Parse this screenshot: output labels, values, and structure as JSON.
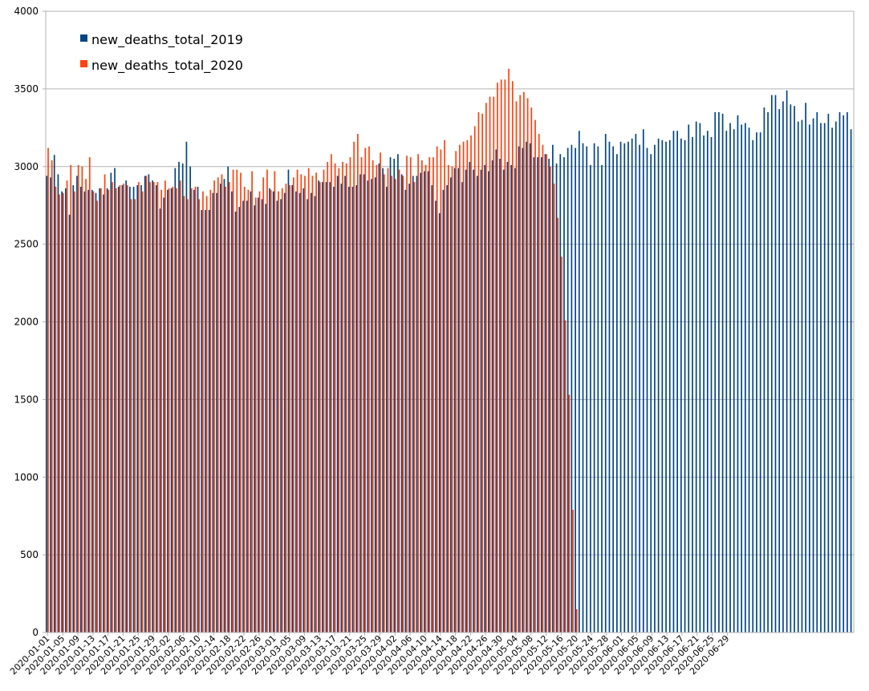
{
  "chart_data": {
    "type": "bar",
    "title": "",
    "xlabel": "",
    "ylabel": "",
    "ylim": [
      0,
      4000
    ],
    "yticks": [
      0,
      500,
      1000,
      1500,
      2000,
      2500,
      3000,
      3500,
      4000
    ],
    "grid": "horizontal",
    "legend_position": "top-left",
    "x_start_date": "2020-01-01",
    "x_tick_labels": [
      "2020-01-01",
      "2020-01-05",
      "2020-01-09",
      "2020-01-13",
      "2020-01-17",
      "2020-01-21",
      "2020-01-25",
      "2020-01-29",
      "2020-02-02",
      "2020-02-06",
      "2020-02-10",
      "2020-02-14",
      "2020-02-18",
      "2020-02-22",
      "2020-02-26",
      "2020-03-01",
      "2020-03-05",
      "2020-03-09",
      "2020-03-13",
      "2020-03-17",
      "2020-03-21",
      "2020-03-25",
      "2020-03-29",
      "2020-04-02",
      "2020-04-06",
      "2020-04-10",
      "2020-04-14",
      "2020-04-18",
      "2020-04-22",
      "2020-04-26",
      "2020-04-30",
      "2020-05-04",
      "2020-05-08",
      "2020-05-12",
      "2020-05-16",
      "2020-05-20",
      "2020-05-24",
      "2020-05-28",
      "2020-06-01",
      "2020-06-05",
      "2020-06-09",
      "2020-06-13",
      "2020-06-17",
      "2020-06-21",
      "2020-06-25",
      "2020-06-29"
    ],
    "series": [
      {
        "name": "new_deaths_total_2019",
        "color": "#004586",
        "values": [
          2940,
          2930,
          3075,
          2950,
          2840,
          2860,
          2690,
          2880,
          2940,
          2870,
          2840,
          2850,
          2850,
          2830,
          2860,
          2820,
          2860,
          2960,
          2990,
          2870,
          2880,
          2910,
          2870,
          2870,
          2880,
          2880,
          2940,
          2950,
          2910,
          2880,
          2730,
          2800,
          2850,
          2860,
          2990,
          3030,
          3020,
          3160,
          3000,
          2850,
          2870,
          2720,
          2720,
          2720,
          2830,
          2830,
          2890,
          2920,
          3000,
          2840,
          2710,
          2740,
          2780,
          2780,
          2840,
          2750,
          2800,
          2790,
          2760,
          2860,
          2840,
          2780,
          2790,
          2830,
          2980,
          2880,
          2840,
          2830,
          2860,
          2790,
          2830,
          2810,
          2910,
          2900,
          2900,
          2900,
          2870,
          2940,
          2890,
          2940,
          2870,
          2870,
          2880,
          2950,
          2950,
          2910,
          2920,
          2930,
          3020,
          2990,
          2870,
          3060,
          3050,
          3080,
          2950,
          2850,
          2890,
          2940,
          2940,
          2960,
          2970,
          2970,
          2880,
          2780,
          2700,
          2850,
          2880,
          2930,
          2990,
          2990,
          2900,
          2980,
          3030,
          2980,
          2940,
          2980,
          3010,
          2970,
          3040,
          3110,
          3050,
          2980,
          3030,
          3010,
          2990,
          3130,
          3120,
          3160,
          3150,
          3060,
          3060,
          3060,
          3080,
          3050,
          3140,
          3020,
          3080,
          3060,
          3120,
          3140,
          3120,
          3230,
          3150,
          3130,
          3010,
          3150,
          3130,
          3010,
          3210,
          3160,
          3130,
          3080,
          3160,
          3150,
          3160,
          3180,
          3210,
          3140,
          3240,
          3120,
          3080,
          3140,
          3180,
          3170,
          3160,
          3170,
          3230,
          3230,
          3180,
          3170,
          3270,
          3190,
          3290,
          3280,
          3200,
          3230,
          3190,
          3350,
          3350,
          3340,
          3230,
          3280,
          3240,
          3330,
          3270,
          3280,
          3250,
          3170,
          3220,
          3220,
          3380,
          3350,
          3460,
          3460,
          3370,
          3420,
          3490,
          3400,
          3390,
          3290,
          3300,
          3410,
          3270,
          3310,
          3350,
          3280,
          3280,
          3340,
          3250,
          3290,
          3350,
          3330,
          3350,
          3240
        ]
      },
      {
        "name": "new_deaths_total_2020",
        "color": "#ff420e",
        "values": [
          3120,
          3040,
          2870,
          2820,
          2830,
          2910,
          3010,
          2840,
          3010,
          3000,
          2920,
          3060,
          2840,
          2780,
          2860,
          2950,
          2850,
          2900,
          2860,
          2880,
          2890,
          2880,
          2790,
          2790,
          2900,
          2840,
          2940,
          2900,
          2900,
          2900,
          2850,
          2910,
          2860,
          2870,
          2860,
          2910,
          2810,
          2790,
          2860,
          2870,
          2790,
          2840,
          2810,
          2850,
          2910,
          2930,
          2950,
          2870,
          2900,
          2980,
          2980,
          2960,
          2870,
          2850,
          2970,
          2800,
          2840,
          2930,
          2980,
          2850,
          2970,
          2840,
          2860,
          2890,
          2880,
          2930,
          2980,
          2950,
          2940,
          2990,
          2940,
          2960,
          2900,
          2980,
          3030,
          3080,
          3020,
          2990,
          3030,
          3020,
          3060,
          3160,
          3210,
          3060,
          3120,
          3130,
          3040,
          3010,
          3090,
          2950,
          2990,
          2940,
          2920,
          2980,
          2940,
          3070,
          3060,
          2900,
          3080,
          3040,
          3010,
          3060,
          3060,
          3130,
          3110,
          3170,
          3010,
          3000,
          3100,
          3140,
          3160,
          3170,
          3200,
          3260,
          3350,
          3340,
          3410,
          3450,
          3450,
          3540,
          3560,
          3560,
          3630,
          3550,
          3420,
          3460,
          3480,
          3440,
          3380,
          3300,
          3210,
          3140,
          3080,
          3000,
          2890,
          2670,
          2420,
          2010,
          1530,
          790,
          150
        ]
      }
    ]
  }
}
